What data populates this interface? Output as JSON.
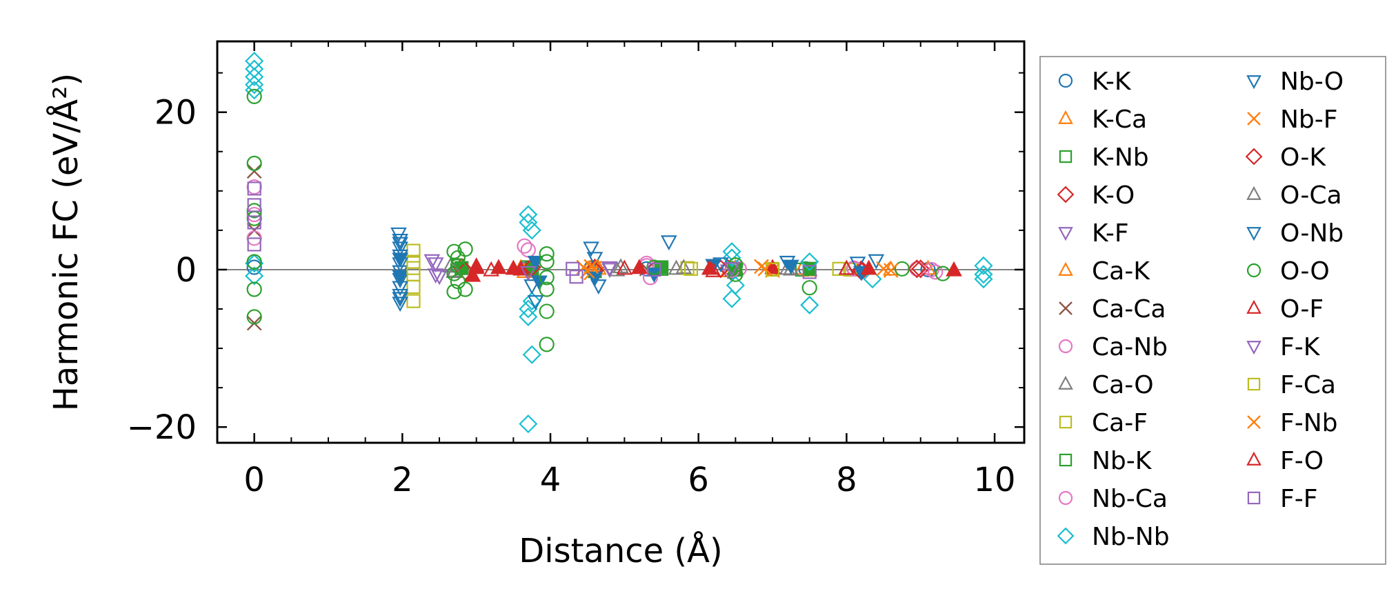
{
  "chart_data": {
    "type": "scatter",
    "xlabel": "Distance (Å)",
    "ylabel": "Harmonic FC (eV/Å²)",
    "xlim": [
      -0.5,
      10.4
    ],
    "ylim": [
      -22,
      29
    ],
    "x_ticks": [
      0,
      2,
      4,
      6,
      8,
      10
    ],
    "y_ticks": [
      -20,
      0,
      20
    ],
    "x_tick_labels": [
      "0",
      "2",
      "4",
      "6",
      "8",
      "10"
    ],
    "y_tick_labels": [
      "−20",
      "0",
      "20"
    ],
    "reference_line_y": 0,
    "legend_position": "outside-right",
    "grid": false,
    "series": [
      {
        "name": "K-K",
        "marker": "circle",
        "color": "#1f77b4",
        "points": [
          [
            0,
            0.3
          ],
          [
            4.55,
            0.2
          ],
          [
            5.3,
            0.1
          ],
          [
            6.45,
            -0.2
          ],
          [
            7.45,
            0.1
          ],
          [
            9.1,
            0.0
          ]
        ]
      },
      {
        "name": "K-Ca",
        "marker": "triangle-up",
        "color": "#ff7f0e",
        "points": [
          [
            3.6,
            0.2
          ],
          [
            4.6,
            0.3
          ],
          [
            6.4,
            -0.2
          ],
          [
            7.4,
            0.1
          ],
          [
            9.1,
            0.1
          ]
        ]
      },
      {
        "name": "K-Nb",
        "marker": "square",
        "color": "#2ca02c",
        "points": [
          [
            2.75,
            0.5
          ],
          [
            3.7,
            0.3
          ],
          [
            4.6,
            -0.2
          ],
          [
            5.5,
            0.1
          ],
          [
            6.45,
            0.2
          ],
          [
            7.4,
            0.0
          ]
        ]
      },
      {
        "name": "K-O",
        "marker": "diamond",
        "color": "#d62728",
        "points": [
          [
            2.8,
            0.3
          ],
          [
            3.7,
            0.0
          ],
          [
            4.6,
            0.2
          ],
          [
            5.4,
            -0.1
          ],
          [
            6.4,
            0.1
          ],
          [
            8.2,
            0.0
          ],
          [
            9.0,
            0.1
          ]
        ]
      },
      {
        "name": "K-F",
        "marker": "triangle-down",
        "color": "#9467bd",
        "points": [
          [
            2.4,
            1.2
          ],
          [
            2.45,
            -0.6
          ],
          [
            3.7,
            0.2
          ],
          [
            4.8,
            0.1
          ],
          [
            6.4,
            -0.1
          ]
        ]
      },
      {
        "name": "Ca-K",
        "marker": "triangle-up",
        "color": "#ff7f0e",
        "points": [
          [
            3.65,
            -0.3
          ],
          [
            4.65,
            0.1
          ],
          [
            6.5,
            0.2
          ],
          [
            7.5,
            -0.1
          ],
          [
            8.6,
            0.0
          ]
        ]
      },
      {
        "name": "Ca-Ca",
        "marker": "x",
        "color": "#8c564b",
        "points": [
          [
            0,
            12.5
          ],
          [
            0,
            -6.8
          ],
          [
            0,
            5.0
          ],
          [
            3.75,
            0.2
          ],
          [
            5.3,
            0.1
          ],
          [
            6.45,
            0.0
          ],
          [
            7.5,
            0.1
          ]
        ]
      },
      {
        "name": "Ca-Nb",
        "marker": "circle",
        "color": "#e377c2",
        "points": [
          [
            0,
            10.5
          ],
          [
            0,
            7.0
          ],
          [
            0,
            4.0
          ],
          [
            3.65,
            3.0
          ],
          [
            5.3,
            0.8
          ],
          [
            5.35,
            -1.0
          ],
          [
            6.55,
            0.1
          ],
          [
            8.1,
            0.2
          ],
          [
            8.95,
            0.1
          ],
          [
            9.2,
            -0.3
          ]
        ]
      },
      {
        "name": "Ca-O",
        "marker": "triangle-up",
        "color": "#7f7f7f",
        "points": [
          [
            2.65,
            0.4
          ],
          [
            2.7,
            -0.3
          ],
          [
            4.95,
            0.3
          ],
          [
            5.7,
            0.1
          ],
          [
            7.2,
            0.1
          ],
          [
            8.0,
            0.0
          ]
        ]
      },
      {
        "name": "Ca-F",
        "marker": "square",
        "color": "#bcbd22",
        "points": [
          [
            2.15,
            2.4
          ],
          [
            2.15,
            1.0
          ],
          [
            2.15,
            -0.6
          ],
          [
            2.15,
            -2.2
          ],
          [
            2.15,
            -4.0
          ],
          [
            5.85,
            0.2
          ],
          [
            7.0,
            0.1
          ],
          [
            8.05,
            0.0
          ]
        ]
      },
      {
        "name": "Nb-K",
        "marker": "square",
        "color": "#2ca02c",
        "points": [
          [
            2.8,
            0.2
          ],
          [
            3.75,
            0.1
          ],
          [
            5.5,
            0.3
          ],
          [
            6.5,
            0.0
          ],
          [
            7.5,
            0.1
          ]
        ]
      },
      {
        "name": "Nb-Ca",
        "marker": "circle",
        "color": "#e377c2",
        "points": [
          [
            3.7,
            2.5
          ],
          [
            5.3,
            0.5
          ],
          [
            6.45,
            -0.1
          ],
          [
            8.1,
            0.1
          ],
          [
            9.15,
            0.0
          ]
        ]
      },
      {
        "name": "Nb-Nb",
        "marker": "diamond",
        "color": "#17becf",
        "points": [
          [
            0,
            26.5
          ],
          [
            0,
            25.5
          ],
          [
            0,
            24.5
          ],
          [
            0,
            23.5
          ],
          [
            0,
            22.8
          ],
          [
            0,
            0.8
          ],
          [
            0,
            -0.8
          ],
          [
            3.7,
            7.0
          ],
          [
            3.7,
            6.0
          ],
          [
            3.75,
            5.0
          ],
          [
            3.7,
            -5.0
          ],
          [
            3.7,
            -6.0
          ],
          [
            3.75,
            -4.0
          ],
          [
            3.75,
            -10.8
          ],
          [
            3.7,
            -19.6
          ],
          [
            6.45,
            2.3
          ],
          [
            6.45,
            1.5
          ],
          [
            6.5,
            -2.0
          ],
          [
            6.45,
            -3.7
          ],
          [
            7.5,
            1.0
          ],
          [
            7.5,
            -4.5
          ],
          [
            8.35,
            -1.2
          ],
          [
            9.85,
            0.5
          ],
          [
            9.85,
            -0.6
          ],
          [
            9.85,
            -1.2
          ]
        ]
      },
      {
        "name": "Nb-O",
        "marker": "triangle-down",
        "color": "#1f77b4",
        "points": [
          [
            1.95,
            4.6
          ],
          [
            1.97,
            3.8
          ],
          [
            1.97,
            2.8
          ],
          [
            1.97,
            1.8
          ],
          [
            1.97,
            0.8
          ],
          [
            1.97,
            -0.2
          ],
          [
            1.97,
            -1.2
          ],
          [
            1.97,
            -2.2
          ],
          [
            1.97,
            -3.2
          ],
          [
            1.97,
            -4.2
          ],
          [
            3.75,
            -2.0
          ],
          [
            3.8,
            -4.0
          ],
          [
            4.55,
            2.8
          ],
          [
            4.6,
            1.5
          ],
          [
            5.6,
            3.6
          ],
          [
            6.3,
            0.8
          ],
          [
            7.2,
            1.0
          ],
          [
            8.15,
            0.9
          ],
          [
            8.4,
            1.2
          ]
        ]
      },
      {
        "name": "Nb-F",
        "marker": "x",
        "color": "#ff7f0e",
        "points": [
          [
            4.45,
            0.3
          ],
          [
            4.55,
            -0.4
          ],
          [
            4.6,
            0.2
          ],
          [
            6.85,
            0.4
          ],
          [
            7.0,
            -0.1
          ],
          [
            8.5,
            0.1
          ]
        ]
      },
      {
        "name": "O-K",
        "marker": "diamond",
        "color": "#d62728",
        "points": [
          [
            2.85,
            -0.2
          ],
          [
            3.75,
            0.3
          ],
          [
            4.6,
            -0.1
          ],
          [
            6.3,
            0.1
          ],
          [
            8.2,
            -0.2
          ],
          [
            8.95,
            0.1
          ]
        ]
      },
      {
        "name": "O-Ca",
        "marker": "triangle-up",
        "color": "#7f7f7f",
        "points": [
          [
            2.7,
            -0.2
          ],
          [
            4.9,
            -0.1
          ],
          [
            5.8,
            0.2
          ],
          [
            7.25,
            0.0
          ]
        ]
      },
      {
        "name": "O-Nb",
        "marker": "triangle-down",
        "color": "#1f77b4",
        "points": [
          [
            1.97,
            3.4
          ],
          [
            1.97,
            1.4
          ],
          [
            1.97,
            -0.8
          ],
          [
            1.97,
            -3.6
          ],
          [
            3.8,
            1.0
          ],
          [
            3.85,
            -1.5
          ],
          [
            4.6,
            -1.0
          ],
          [
            4.65,
            -2.0
          ],
          [
            5.4,
            -0.5
          ],
          [
            6.2,
            0.6
          ],
          [
            7.25,
            0.5
          ],
          [
            8.2,
            -0.3
          ]
        ]
      },
      {
        "name": "O-O",
        "marker": "circle",
        "color": "#2ca02c",
        "points": [
          [
            0,
            22.0
          ],
          [
            0,
            13.5
          ],
          [
            0,
            7.5
          ],
          [
            0,
            6.5
          ],
          [
            0,
            1.0
          ],
          [
            0,
            -2.5
          ],
          [
            0,
            -6.0
          ],
          [
            2.7,
            2.3
          ],
          [
            2.75,
            1.5
          ],
          [
            2.75,
            0.5
          ],
          [
            2.7,
            -0.5
          ],
          [
            2.75,
            -1.5
          ],
          [
            2.7,
            -2.8
          ],
          [
            2.85,
            2.6
          ],
          [
            2.85,
            -2.5
          ],
          [
            3.95,
            2.0
          ],
          [
            3.95,
            1.0
          ],
          [
            3.95,
            -1.0
          ],
          [
            3.95,
            -2.5
          ],
          [
            3.95,
            -5.3
          ],
          [
            3.95,
            -9.5
          ],
          [
            5.4,
            0.3
          ],
          [
            6.5,
            0.6
          ],
          [
            6.5,
            -0.6
          ],
          [
            7.5,
            -2.3
          ],
          [
            8.75,
            0.1
          ],
          [
            9.3,
            -0.5
          ]
        ]
      },
      {
        "name": "O-F",
        "marker": "triangle-up",
        "color": "#d62728",
        "points": [
          [
            2.95,
            -0.8
          ],
          [
            3.0,
            0.2
          ],
          [
            3.3,
            0.2
          ],
          [
            3.5,
            0.1
          ],
          [
            3.6,
            0.0
          ],
          [
            5.2,
            0.2
          ],
          [
            6.15,
            0.1
          ],
          [
            7.0,
            0.2
          ],
          [
            8.3,
            0.1
          ],
          [
            9.45,
            -0.1
          ]
        ]
      },
      {
        "name": "F-K",
        "marker": "triangle-down",
        "color": "#9467bd",
        "points": [
          [
            2.45,
            0.8
          ],
          [
            2.5,
            -0.8
          ],
          [
            3.7,
            -0.3
          ],
          [
            4.8,
            0.3
          ],
          [
            6.45,
            0.2
          ]
        ]
      },
      {
        "name": "F-Ca",
        "marker": "square",
        "color": "#bcbd22",
        "points": [
          [
            2.15,
            0.2
          ],
          [
            5.9,
            0.1
          ],
          [
            7.0,
            0.0
          ],
          [
            7.9,
            0.1
          ]
        ]
      },
      {
        "name": "F-Nb",
        "marker": "x",
        "color": "#ff7f0e",
        "points": [
          [
            4.5,
            -0.2
          ],
          [
            4.55,
            0.4
          ],
          [
            6.9,
            0.1
          ],
          [
            8.6,
            -0.1
          ]
        ]
      },
      {
        "name": "F-O",
        "marker": "triangle-up",
        "color": "#d62728",
        "points": [
          [
            3.0,
            0.4
          ],
          [
            3.2,
            -0.1
          ],
          [
            5.0,
            0.1
          ],
          [
            6.2,
            -0.2
          ],
          [
            8.0,
            0.1
          ]
        ]
      },
      {
        "name": "F-F",
        "marker": "square",
        "color": "#9467bd",
        "points": [
          [
            0,
            10.3
          ],
          [
            0,
            8.2
          ],
          [
            0,
            6.0
          ],
          [
            0,
            3.2
          ],
          [
            4.3,
            0.1
          ],
          [
            4.35,
            -0.9
          ],
          [
            5.4,
            0.0
          ],
          [
            7.5,
            -0.3
          ]
        ]
      }
    ]
  },
  "colors": {
    "axis": "#000000",
    "reference_line": "#808080",
    "legend_frame": "#7f7f7f"
  }
}
